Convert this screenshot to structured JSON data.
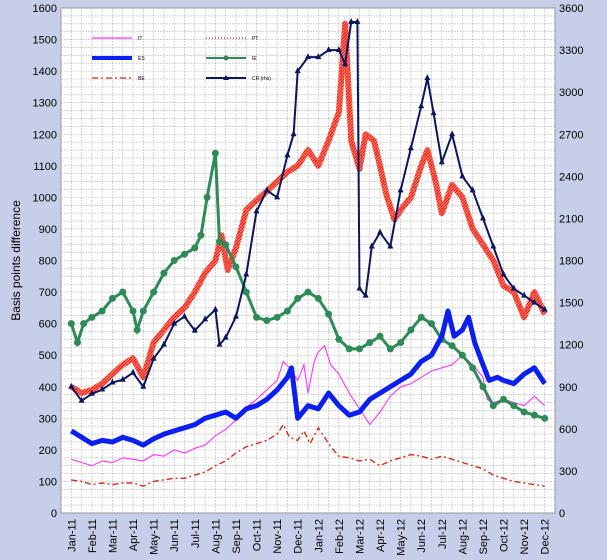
{
  "chart_data": {
    "type": "line",
    "title": "",
    "xlabel": "",
    "ylabel": "Basis points difference",
    "ylim": [
      0,
      1600
    ],
    "y2lim": [
      0,
      3600
    ],
    "y_ticks": [
      "0",
      "100",
      "200",
      "300",
      "400",
      "500",
      "600",
      "700",
      "800",
      "900",
      "1000",
      "1100",
      "1200",
      "1300",
      "1400",
      "1500",
      "1600"
    ],
    "y2_ticks": [
      "0",
      "300",
      "600",
      "900",
      "1200",
      "1500",
      "1800",
      "2100",
      "2400",
      "2700",
      "3000",
      "3300",
      "3600"
    ],
    "categories": [
      "Jan-11",
      "Feb-11",
      "Mar-11",
      "Apr-11",
      "May-11",
      "Jun-11",
      "Jul-11",
      "Aug-11",
      "Sep-11",
      "Oct-11",
      "Nov-11",
      "Dec-11",
      "Jan-12",
      "Feb-12",
      "Mar-12",
      "Apr-12",
      "May-12",
      "Jun-12",
      "Jul-12",
      "Aug-12",
      "Sep-12",
      "Oct-12",
      "Nov-12",
      "Dec-12"
    ],
    "grid": true,
    "legend_position": "top-left",
    "series": [
      {
        "name": "IT",
        "axis": "left",
        "color": "#ff33ff",
        "style": "thin",
        "values": [
          [
            0,
            170
          ],
          [
            0.5,
            160
          ],
          [
            1,
            150
          ],
          [
            1.5,
            165
          ],
          [
            2,
            160
          ],
          [
            2.5,
            175
          ],
          [
            3,
            170
          ],
          [
            3.5,
            165
          ],
          [
            4,
            185
          ],
          [
            4.5,
            180
          ],
          [
            5,
            200
          ],
          [
            5.5,
            190
          ],
          [
            6,
            205
          ],
          [
            6.5,
            215
          ],
          [
            7,
            245
          ],
          [
            7.5,
            265
          ],
          [
            8,
            295
          ],
          [
            8.5,
            335
          ],
          [
            9,
            360
          ],
          [
            9.5,
            390
          ],
          [
            10,
            420
          ],
          [
            10.3,
            480
          ],
          [
            10.6,
            460
          ],
          [
            11,
            420
          ],
          [
            11.3,
            470
          ],
          [
            11.5,
            380
          ],
          [
            11.8,
            480
          ],
          [
            12,
            510
          ],
          [
            12.3,
            530
          ],
          [
            12.6,
            470
          ],
          [
            13,
            440
          ],
          [
            13.5,
            380
          ],
          [
            14,
            330
          ],
          [
            14.5,
            280
          ],
          [
            15,
            320
          ],
          [
            15.5,
            370
          ],
          [
            16,
            400
          ],
          [
            16.5,
            410
          ],
          [
            17,
            430
          ],
          [
            17.5,
            450
          ],
          [
            18,
            460
          ],
          [
            18.5,
            470
          ],
          [
            19,
            500
          ],
          [
            19.5,
            470
          ],
          [
            20,
            430
          ],
          [
            20.2,
            360
          ],
          [
            20.5,
            350
          ],
          [
            21,
            360
          ],
          [
            21.5,
            350
          ],
          [
            22,
            340
          ],
          [
            22.5,
            370
          ],
          [
            23,
            340
          ]
        ]
      },
      {
        "name": "ES",
        "axis": "left",
        "color": "#0a1ff0",
        "style": "thick",
        "values": [
          [
            0,
            260
          ],
          [
            0.5,
            240
          ],
          [
            1,
            220
          ],
          [
            1.5,
            230
          ],
          [
            2,
            225
          ],
          [
            2.5,
            240
          ],
          [
            3,
            230
          ],
          [
            3.5,
            215
          ],
          [
            4,
            235
          ],
          [
            4.5,
            250
          ],
          [
            5,
            260
          ],
          [
            5.5,
            270
          ],
          [
            6,
            280
          ],
          [
            6.5,
            300
          ],
          [
            7,
            310
          ],
          [
            7.5,
            320
          ],
          [
            8,
            300
          ],
          [
            8.5,
            330
          ],
          [
            9,
            340
          ],
          [
            9.5,
            360
          ],
          [
            10,
            390
          ],
          [
            10.5,
            430
          ],
          [
            10.7,
            460
          ],
          [
            11,
            300
          ],
          [
            11.5,
            340
          ],
          [
            12,
            330
          ],
          [
            12.5,
            380
          ],
          [
            13,
            340
          ],
          [
            13.5,
            310
          ],
          [
            14,
            320
          ],
          [
            14.5,
            360
          ],
          [
            15,
            380
          ],
          [
            15.5,
            400
          ],
          [
            16,
            420
          ],
          [
            16.5,
            440
          ],
          [
            17,
            480
          ],
          [
            17.5,
            500
          ],
          [
            18,
            560
          ],
          [
            18.3,
            640
          ],
          [
            18.6,
            560
          ],
          [
            19,
            580
          ],
          [
            19.3,
            620
          ],
          [
            19.6,
            540
          ],
          [
            20,
            470
          ],
          [
            20.3,
            420
          ],
          [
            20.7,
            430
          ],
          [
            21,
            420
          ],
          [
            21.5,
            410
          ],
          [
            22,
            440
          ],
          [
            22.5,
            460
          ],
          [
            23,
            410
          ]
        ]
      },
      {
        "name": "BE",
        "axis": "left",
        "color": "#dd2a10",
        "style": "dashdot",
        "values": [
          [
            0,
            105
          ],
          [
            0.5,
            100
          ],
          [
            1,
            90
          ],
          [
            1.5,
            95
          ],
          [
            2,
            90
          ],
          [
            2.5,
            95
          ],
          [
            3,
            95
          ],
          [
            3.5,
            85
          ],
          [
            4,
            100
          ],
          [
            4.5,
            105
          ],
          [
            5,
            110
          ],
          [
            5.5,
            110
          ],
          [
            6,
            120
          ],
          [
            6.5,
            130
          ],
          [
            7,
            150
          ],
          [
            7.5,
            165
          ],
          [
            8,
            190
          ],
          [
            8.5,
            210
          ],
          [
            9,
            220
          ],
          [
            9.5,
            230
          ],
          [
            10,
            250
          ],
          [
            10.3,
            280
          ],
          [
            10.6,
            240
          ],
          [
            11,
            230
          ],
          [
            11.3,
            260
          ],
          [
            11.6,
            220
          ],
          [
            12,
            270
          ],
          [
            12.3,
            240
          ],
          [
            12.6,
            210
          ],
          [
            13,
            180
          ],
          [
            13.5,
            175
          ],
          [
            14,
            165
          ],
          [
            14.5,
            170
          ],
          [
            15,
            150
          ],
          [
            15.5,
            165
          ],
          [
            16,
            175
          ],
          [
            16.5,
            185
          ],
          [
            17,
            180
          ],
          [
            17.5,
            170
          ],
          [
            18,
            180
          ],
          [
            18.5,
            170
          ],
          [
            19,
            160
          ],
          [
            19.5,
            150
          ],
          [
            20,
            140
          ],
          [
            20.5,
            120
          ],
          [
            21,
            110
          ],
          [
            21.5,
            100
          ],
          [
            22,
            95
          ],
          [
            22.5,
            90
          ],
          [
            23,
            85
          ]
        ]
      },
      {
        "name": "PT",
        "axis": "left",
        "color": "#ff3333",
        "style": "dotted-thick",
        "values": [
          [
            0,
            400
          ],
          [
            0.5,
            380
          ],
          [
            1,
            390
          ],
          [
            1.5,
            410
          ],
          [
            2,
            440
          ],
          [
            2.5,
            470
          ],
          [
            3,
            490
          ],
          [
            3.5,
            430
          ],
          [
            4,
            540
          ],
          [
            4.5,
            580
          ],
          [
            5,
            620
          ],
          [
            5.5,
            650
          ],
          [
            6,
            700
          ],
          [
            6.5,
            760
          ],
          [
            7,
            800
          ],
          [
            7.3,
            880
          ],
          [
            7.6,
            770
          ],
          [
            8,
            840
          ],
          [
            8.5,
            960
          ],
          [
            9,
            990
          ],
          [
            9.5,
            1020
          ],
          [
            10,
            1050
          ],
          [
            10.5,
            1080
          ],
          [
            11,
            1100
          ],
          [
            11.5,
            1150
          ],
          [
            12,
            1100
          ],
          [
            12.5,
            1180
          ],
          [
            13,
            1270
          ],
          [
            13.3,
            1550
          ],
          [
            13.6,
            1180
          ],
          [
            14,
            1090
          ],
          [
            14.3,
            1200
          ],
          [
            14.7,
            1180
          ],
          [
            15,
            1100
          ],
          [
            15.3,
            1010
          ],
          [
            15.7,
            930
          ],
          [
            16,
            960
          ],
          [
            16.5,
            1000
          ],
          [
            17,
            1100
          ],
          [
            17.3,
            1150
          ],
          [
            17.7,
            1050
          ],
          [
            18,
            950
          ],
          [
            18.5,
            1040
          ],
          [
            19,
            1000
          ],
          [
            19.5,
            900
          ],
          [
            20,
            850
          ],
          [
            20.5,
            800
          ],
          [
            21,
            720
          ],
          [
            21.5,
            700
          ],
          [
            22,
            620
          ],
          [
            22.5,
            700
          ],
          [
            23,
            630
          ]
        ]
      },
      {
        "name": "IE",
        "axis": "left",
        "color": "#2e8b57",
        "style": "marker-line",
        "values": [
          [
            0,
            600
          ],
          [
            0.3,
            540
          ],
          [
            0.6,
            600
          ],
          [
            1,
            620
          ],
          [
            1.5,
            640
          ],
          [
            2,
            680
          ],
          [
            2.5,
            700
          ],
          [
            3,
            640
          ],
          [
            3.2,
            580
          ],
          [
            3.5,
            640
          ],
          [
            4,
            700
          ],
          [
            4.5,
            760
          ],
          [
            5,
            800
          ],
          [
            5.5,
            820
          ],
          [
            6,
            840
          ],
          [
            6.3,
            880
          ],
          [
            6.6,
            1000
          ],
          [
            7,
            1140
          ],
          [
            7.2,
            860
          ],
          [
            7.5,
            850
          ],
          [
            8,
            780
          ],
          [
            8.5,
            700
          ],
          [
            9,
            620
          ],
          [
            9.5,
            610
          ],
          [
            10,
            620
          ],
          [
            10.5,
            640
          ],
          [
            11,
            680
          ],
          [
            11.5,
            700
          ],
          [
            12,
            680
          ],
          [
            12.5,
            630
          ],
          [
            13,
            550
          ],
          [
            13.5,
            520
          ],
          [
            14,
            520
          ],
          [
            14.5,
            540
          ],
          [
            15,
            560
          ],
          [
            15.5,
            520
          ],
          [
            16,
            540
          ],
          [
            16.5,
            580
          ],
          [
            17,
            620
          ],
          [
            17.5,
            600
          ],
          [
            18,
            550
          ],
          [
            18.5,
            530
          ],
          [
            19,
            500
          ],
          [
            19.5,
            460
          ],
          [
            20,
            400
          ],
          [
            20.5,
            340
          ],
          [
            21,
            360
          ],
          [
            21.5,
            340
          ],
          [
            22,
            320
          ],
          [
            22.5,
            310
          ],
          [
            23,
            300
          ]
        ]
      },
      {
        "name": "CR (rhs)",
        "axis": "right",
        "color": "#0d1560",
        "style": "marker-line",
        "values": [
          [
            0,
            900
          ],
          [
            0.5,
            800
          ],
          [
            1,
            850
          ],
          [
            1.5,
            880
          ],
          [
            2,
            930
          ],
          [
            2.5,
            950
          ],
          [
            3,
            1000
          ],
          [
            3.5,
            900
          ],
          [
            4,
            1100
          ],
          [
            4.5,
            1200
          ],
          [
            5,
            1350
          ],
          [
            5.5,
            1400
          ],
          [
            6,
            1300
          ],
          [
            6.5,
            1380
          ],
          [
            7,
            1450
          ],
          [
            7.2,
            1200
          ],
          [
            7.5,
            1250
          ],
          [
            8,
            1400
          ],
          [
            8.5,
            1700
          ],
          [
            9,
            2150
          ],
          [
            9.5,
            2300
          ],
          [
            10,
            2250
          ],
          [
            10.5,
            2550
          ],
          [
            10.8,
            2700
          ],
          [
            11,
            3150
          ],
          [
            11.5,
            3250
          ],
          [
            12,
            3250
          ],
          [
            12.5,
            3300
          ],
          [
            13,
            3300
          ],
          [
            13.3,
            3200
          ],
          [
            13.6,
            3500
          ],
          [
            13.9,
            3500
          ],
          [
            14,
            1600
          ],
          [
            14.3,
            1550
          ],
          [
            14.6,
            1900
          ],
          [
            15,
            2000
          ],
          [
            15.5,
            1900
          ],
          [
            16,
            2300
          ],
          [
            16.5,
            2600
          ],
          [
            17,
            2900
          ],
          [
            17.3,
            3100
          ],
          [
            17.6,
            2850
          ],
          [
            18,
            2500
          ],
          [
            18.5,
            2700
          ],
          [
            19,
            2400
          ],
          [
            19.5,
            2300
          ],
          [
            20,
            2100
          ],
          [
            20.5,
            1900
          ],
          [
            21,
            1700
          ],
          [
            21.5,
            1600
          ],
          [
            22,
            1550
          ],
          [
            22.5,
            1500
          ],
          [
            23,
            1450
          ]
        ]
      }
    ]
  }
}
